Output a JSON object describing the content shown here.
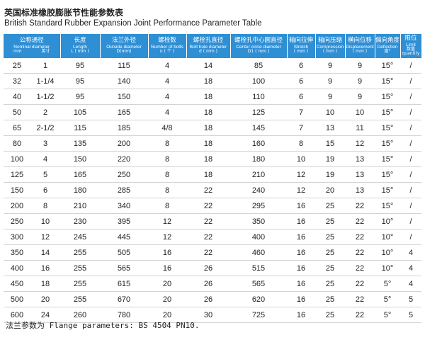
{
  "header": {
    "title": "英国标准橡胶膨胀节性能参数表",
    "subtitle": "British Standard Rubber Expansion Joint Performance Parameter Table"
  },
  "table": {
    "columns": [
      {
        "zh": "公称通径",
        "en": "Nominal diameter",
        "units": [
          "mm",
          "英寸"
        ]
      },
      {
        "zh": "长度",
        "en": "Length",
        "unit": "L ( mm )"
      },
      {
        "zh": "法兰外径",
        "en": "Outside diameter",
        "unit": "D(mm)"
      },
      {
        "zh": "螺栓数",
        "en": "Number of bolts",
        "unit": "n ( 个 )"
      },
      {
        "zh": "螺栓孔直径",
        "en": "Bolt hole diameter",
        "unit": "d ( mm )"
      },
      {
        "zh": "螺栓孔中心圆直径",
        "en": "Center circle diameter",
        "unit": "D1 ( mm )"
      },
      {
        "zh": "轴向拉伸",
        "en": "Stretch",
        "unit": "( mm )"
      },
      {
        "zh": "轴向压缩",
        "en": "Compression",
        "unit": "( mm )"
      },
      {
        "zh": "横向位移",
        "en": "Displacement",
        "unit": "( mm )"
      },
      {
        "zh": "偏向角度",
        "en": "Deflection",
        "unit": "度°"
      },
      {
        "zh": "限位",
        "en": "Limit",
        "unit": "数量 quantity"
      }
    ],
    "rows": [
      [
        25,
        "1",
        95,
        115,
        "4",
        14,
        85,
        6,
        9,
        9,
        "15°",
        "/"
      ],
      [
        32,
        "1-1/4",
        95,
        140,
        "4",
        18,
        100,
        6,
        9,
        9,
        "15°",
        "/"
      ],
      [
        40,
        "1-1/2",
        95,
        150,
        "4",
        18,
        110,
        6,
        9,
        9,
        "15°",
        "/"
      ],
      [
        50,
        "2",
        105,
        165,
        "4",
        18,
        125,
        7,
        10,
        10,
        "15°",
        "/"
      ],
      [
        65,
        "2-1/2",
        115,
        185,
        "4/8",
        18,
        145,
        7,
        13,
        11,
        "15°",
        "/"
      ],
      [
        80,
        "3",
        135,
        200,
        "8",
        18,
        160,
        8,
        15,
        12,
        "15°",
        "/"
      ],
      [
        100,
        "4",
        150,
        220,
        "8",
        18,
        180,
        10,
        19,
        13,
        "15°",
        "/"
      ],
      [
        125,
        "5",
        165,
        250,
        "8",
        18,
        210,
        12,
        19,
        13,
        "15°",
        "/"
      ],
      [
        150,
        "6",
        180,
        285,
        "8",
        22,
        240,
        12,
        20,
        13,
        "15°",
        "/"
      ],
      [
        200,
        "8",
        210,
        340,
        "8",
        22,
        295,
        16,
        25,
        22,
        "15°",
        "/"
      ],
      [
        250,
        "10",
        230,
        395,
        "12",
        22,
        350,
        16,
        25,
        22,
        "10°",
        "/"
      ],
      [
        300,
        "12",
        245,
        445,
        "12",
        22,
        400,
        16,
        25,
        22,
        "10°",
        "/"
      ],
      [
        350,
        "14",
        255,
        505,
        "16",
        22,
        460,
        16,
        25,
        22,
        "10°",
        "4"
      ],
      [
        400,
        "16",
        255,
        565,
        "16",
        26,
        515,
        16,
        25,
        22,
        "10°",
        "4"
      ],
      [
        450,
        "18",
        255,
        615,
        "20",
        26,
        565,
        16,
        25,
        22,
        "5°",
        "4"
      ],
      [
        500,
        "20",
        255,
        670,
        "20",
        26,
        620,
        16,
        25,
        22,
        "5°",
        "5"
      ],
      [
        600,
        "24",
        260,
        780,
        "20",
        30,
        725,
        16,
        25,
        22,
        "5°",
        "5"
      ]
    ]
  },
  "footer": {
    "note": "法兰参数为 Flange parameters: BS 4504 PN10."
  }
}
